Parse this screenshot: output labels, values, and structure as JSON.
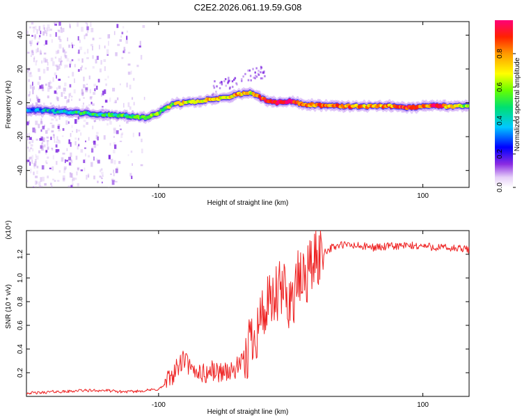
{
  "title": "C2E2.2026.061.19.59.G08",
  "chart_data": [
    {
      "type": "heatmap",
      "xlabel": "Height of straight line (km)",
      "ylabel": "Frequency (Hz)",
      "xlim": [
        -200,
        135
      ],
      "ylim": [
        -50,
        48
      ],
      "xticks": [
        -100,
        100
      ],
      "yticks": [
        -40,
        -20,
        0,
        20,
        40
      ],
      "colorbar": {
        "label": "Normalized spectral amplitude",
        "range": [
          0,
          1
        ],
        "ticks": [
          0.0,
          0.2,
          0.4,
          0.6,
          0.8
        ],
        "tick_labels": [
          "0.0",
          "0.2",
          "0.4",
          "0.6",
          "0.8"
        ]
      },
      "ridge": {
        "x": [
          -200,
          -180,
          -160,
          -140,
          -120,
          -110,
          -100,
          -90,
          -80,
          -70,
          -60,
          -50,
          -40,
          -30,
          -25,
          -20,
          -15,
          -10,
          -5,
          0,
          10,
          20,
          40,
          60,
          80,
          90,
          100,
          110,
          120,
          135
        ],
        "freq": [
          -4,
          -5,
          -6,
          -7,
          -8,
          -9,
          -6,
          -1,
          0,
          1,
          2,
          3,
          5,
          6,
          4,
          2,
          1,
          0,
          0.5,
          1,
          -1,
          -1.5,
          -2,
          -2,
          -2,
          -3,
          -2,
          -2,
          -2,
          -2
        ],
        "amplitude": [
          0.35,
          0.4,
          0.45,
          0.45,
          0.5,
          0.6,
          0.55,
          0.6,
          0.7,
          0.7,
          0.75,
          0.7,
          0.8,
          0.7,
          0.85,
          0.9,
          0.9,
          0.95,
          0.95,
          1.0,
          0.85,
          0.8,
          0.85,
          0.75,
          0.8,
          0.95,
          0.75,
          1.0,
          0.7,
          0.6
        ]
      }
    },
    {
      "type": "line",
      "xlabel": "Height of straight line (km)",
      "ylabel": "SNR (10 * v/v)",
      "scale_label": "(x10⁴)",
      "xlim": [
        -200,
        135
      ],
      "ylim": [
        0,
        1.4
      ],
      "xticks": [
        -100,
        100
      ],
      "yticks": [
        0.2,
        0.4,
        0.6,
        0.8,
        1.0,
        1.2
      ],
      "ytick_labels": [
        "0.2",
        "0.4",
        "0.6",
        "0.8",
        "1.0",
        "1.2"
      ],
      "color": "#ee2222",
      "x": [
        -200,
        -190,
        -180,
        -170,
        -160,
        -150,
        -140,
        -130,
        -120,
        -110,
        -100,
        -95,
        -90,
        -85,
        -80,
        -75,
        -70,
        -65,
        -60,
        -55,
        -50,
        -45,
        -40,
        -35,
        -30,
        -25,
        -20,
        -15,
        -10,
        -5,
        0,
        5,
        10,
        15,
        20,
        25,
        30,
        35,
        40,
        50,
        60,
        70,
        80,
        90,
        100,
        110,
        120,
        135
      ],
      "y": [
        0.03,
        0.03,
        0.04,
        0.04,
        0.05,
        0.05,
        0.05,
        0.04,
        0.04,
        0.05,
        0.06,
        0.1,
        0.18,
        0.25,
        0.32,
        0.2,
        0.22,
        0.18,
        0.22,
        0.2,
        0.22,
        0.2,
        0.25,
        0.3,
        0.5,
        0.6,
        0.72,
        0.75,
        0.85,
        0.9,
        0.8,
        0.95,
        1.0,
        1.1,
        1.18,
        1.22,
        1.25,
        1.27,
        1.28,
        1.27,
        1.26,
        1.26,
        1.27,
        1.27,
        1.27,
        1.26,
        1.25,
        1.24
      ]
    }
  ]
}
